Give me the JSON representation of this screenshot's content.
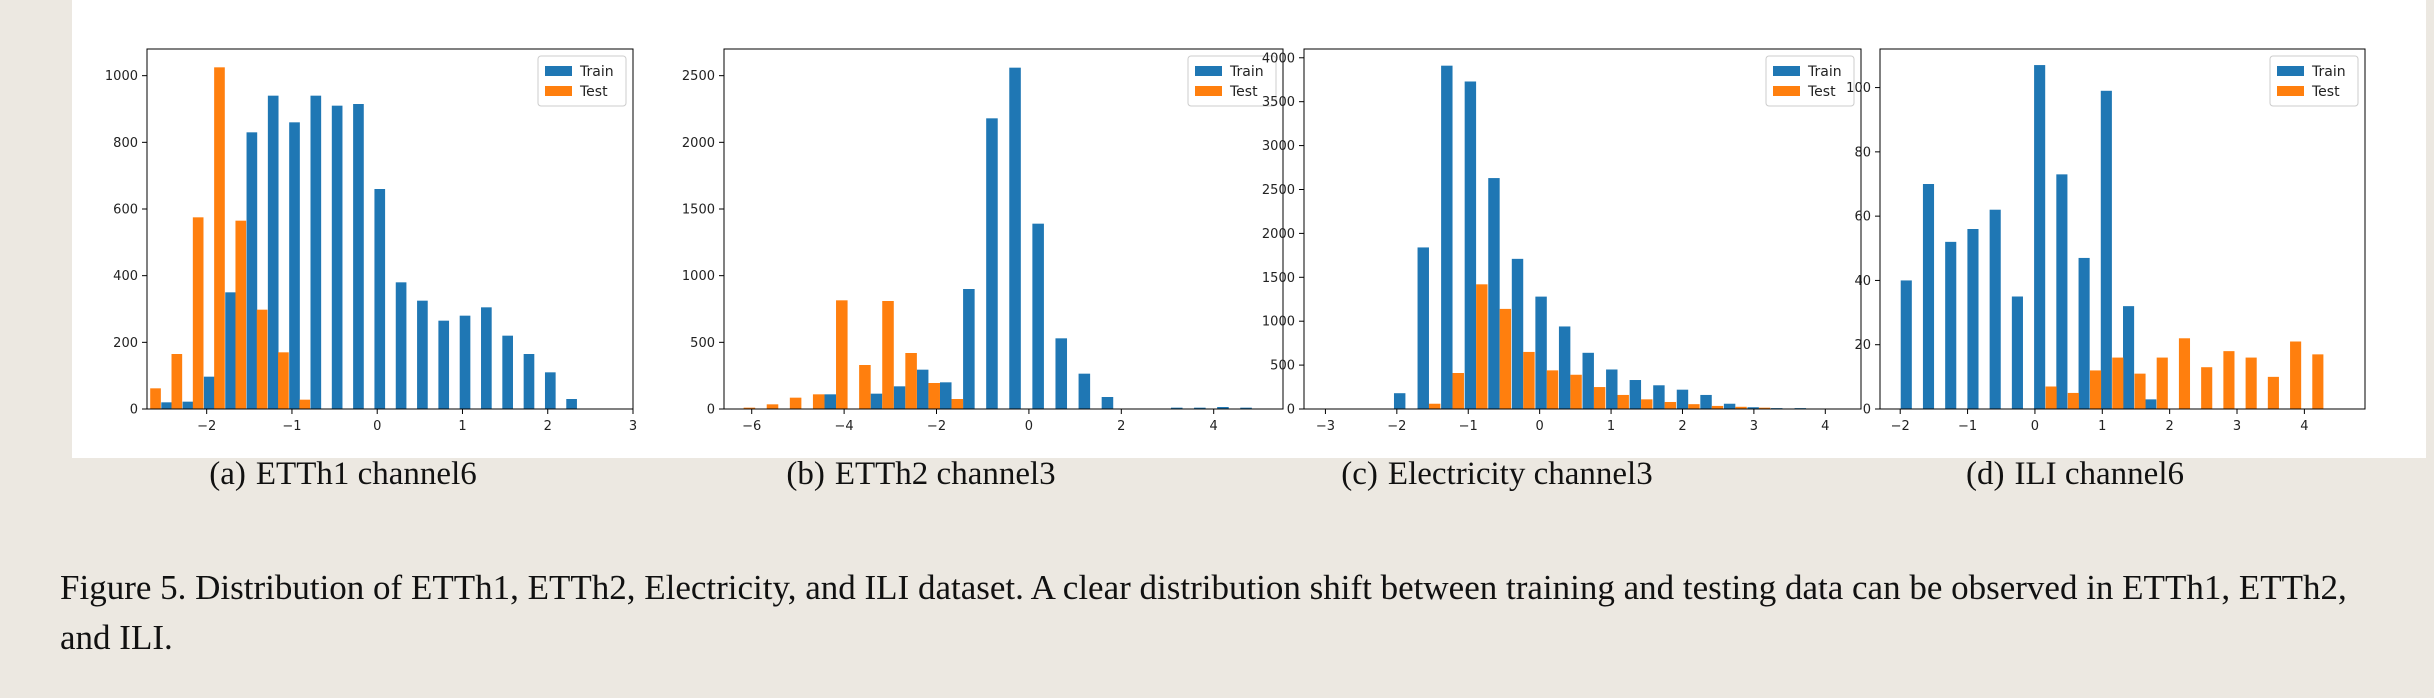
{
  "colors": {
    "train": "#1f77b4",
    "test": "#ff7f0e",
    "background": "#ece8e1",
    "panel": "#ffffff"
  },
  "chart_data": [
    {
      "type": "bar",
      "subcaption_label": "(a)",
      "subcaption_text": "ETTh1 channel6",
      "xlim": [
        -2.7,
        3.0
      ],
      "ylim": [
        0,
        1080
      ],
      "xticks": [
        -2,
        -1,
        0,
        1,
        2,
        3
      ],
      "xtick_labels": [
        "−2",
        "−1",
        "0",
        "1",
        "2",
        "3"
      ],
      "yticks": [
        0,
        200,
        400,
        600,
        800,
        1000
      ],
      "legend_position": "top-right",
      "bar_width": 0.125,
      "series": [
        {
          "name": "Train",
          "x": [
            -2.47,
            -2.22,
            -1.97,
            -1.72,
            -1.47,
            -1.22,
            -0.97,
            -0.72,
            -0.47,
            -0.22,
            0.03,
            0.28,
            0.53,
            0.78,
            1.03,
            1.28,
            1.53,
            1.78,
            2.03,
            2.28,
            2.53
          ],
          "values": [
            20,
            22,
            97,
            350,
            830,
            940,
            860,
            940,
            910,
            915,
            660,
            380,
            325,
            265,
            280,
            305,
            220,
            165,
            110,
            30,
            0
          ]
        },
        {
          "name": "Test",
          "x": [
            -2.6,
            -2.35,
            -2.1,
            -1.85,
            -1.6,
            -1.35,
            -1.1,
            -0.85,
            -0.6
          ],
          "values": [
            62,
            165,
            575,
            1025,
            565,
            298,
            170,
            28,
            0
          ]
        }
      ]
    },
    {
      "type": "bar",
      "subcaption_label": "(b)",
      "subcaption_text": "ETTh2 channel3",
      "xlim": [
        -6.6,
        5.5
      ],
      "ylim": [
        0,
        2700
      ],
      "xticks": [
        -6,
        -4,
        -2,
        0,
        2,
        4
      ],
      "xtick_labels": [
        "−6",
        "−4",
        "−2",
        "0",
        "2",
        "4"
      ],
      "yticks": [
        0,
        500,
        1000,
        1500,
        2000,
        2500
      ],
      "legend_position": "top-right",
      "bar_width": 0.25,
      "series": [
        {
          "name": "Train",
          "x": [
            -5.8,
            -5.3,
            -4.8,
            -4.3,
            -3.8,
            -3.3,
            -2.8,
            -2.3,
            -1.8,
            -1.3,
            -0.8,
            -0.3,
            0.2,
            0.7,
            1.2,
            1.7,
            2.2,
            2.7,
            3.2,
            3.7,
            4.2,
            4.7
          ],
          "values": [
            0,
            0,
            0,
            110,
            0,
            115,
            170,
            295,
            200,
            900,
            2180,
            2560,
            1390,
            530,
            265,
            90,
            0,
            0,
            10,
            10,
            15,
            10
          ]
        },
        {
          "name": "Test",
          "x": [
            -6.05,
            -5.55,
            -5.05,
            -4.55,
            -4.05,
            -3.55,
            -3.05,
            -2.55,
            -2.05,
            -1.55
          ],
          "values": [
            10,
            35,
            85,
            110,
            815,
            330,
            810,
            420,
            195,
            75
          ]
        }
      ]
    },
    {
      "type": "bar",
      "subcaption_label": "(c)",
      "subcaption_text": "Electricity channel3",
      "xlim": [
        -3.3,
        4.5
      ],
      "ylim": [
        0,
        4100
      ],
      "xticks": [
        -3,
        -2,
        -1,
        0,
        1,
        2,
        3,
        4
      ],
      "xtick_labels": [
        "−3",
        "−2",
        "−1",
        "0",
        "1",
        "2",
        "3",
        "4"
      ],
      "yticks": [
        0,
        500,
        1000,
        1500,
        2000,
        2500,
        3000,
        3500,
        4000
      ],
      "legend_position": "top-right",
      "bar_width": 0.16,
      "series": [
        {
          "name": "Train",
          "x": [
            -2.95,
            -2.62,
            -2.29,
            -1.96,
            -1.63,
            -1.3,
            -0.97,
            -0.64,
            -0.31,
            0.02,
            0.35,
            0.68,
            1.01,
            1.34,
            1.67,
            2.0,
            2.33,
            2.66,
            2.99,
            3.32,
            3.65,
            3.98
          ],
          "values": [
            0,
            0,
            0,
            180,
            1840,
            3910,
            3730,
            2630,
            1710,
            1280,
            940,
            640,
            450,
            330,
            270,
            220,
            160,
            60,
            20,
            10,
            10,
            5
          ]
        },
        {
          "name": "Test",
          "x": [
            -1.47,
            -1.14,
            -0.81,
            -0.48,
            -0.15,
            0.18,
            0.51,
            0.84,
            1.17,
            1.5,
            1.83,
            2.16,
            2.49,
            2.82,
            3.15,
            3.48
          ],
          "values": [
            60,
            410,
            1420,
            1140,
            650,
            440,
            390,
            250,
            160,
            110,
            80,
            55,
            35,
            25,
            15,
            5
          ]
        }
      ]
    },
    {
      "type": "bar",
      "subcaption_label": "(d)",
      "subcaption_text": "ILI channel6",
      "xlim": [
        -2.3,
        4.9
      ],
      "ylim": [
        0,
        112
      ],
      "xticks": [
        -2,
        -1,
        0,
        1,
        2,
        3,
        4
      ],
      "xtick_labels": [
        "−2",
        "−1",
        "0",
        "1",
        "2",
        "3",
        "4"
      ],
      "yticks": [
        0,
        20,
        40,
        60,
        80,
        100
      ],
      "legend_position": "top-right",
      "bar_width": 0.165,
      "series": [
        {
          "name": "Train",
          "x": [
            -1.91,
            -1.58,
            -1.25,
            -0.92,
            -0.59,
            -0.26,
            0.07,
            0.4,
            0.73,
            1.06,
            1.39,
            1.72
          ],
          "values": [
            40,
            70,
            52,
            56,
            62,
            35,
            107,
            73,
            47,
            99,
            32,
            3
          ]
        },
        {
          "name": "Test",
          "x": [
            0.24,
            0.57,
            0.9,
            1.23,
            1.56,
            1.89,
            2.22,
            2.55,
            2.88,
            3.21,
            3.54,
            3.87,
            4.2,
            4.53
          ],
          "values": [
            7,
            5,
            12,
            16,
            11,
            16,
            22,
            13,
            18,
            16,
            10,
            21,
            17,
            0
          ]
        }
      ]
    }
  ],
  "caption": "Figure 5.  Distribution of ETTh1, ETTh2, Electricity, and ILI dataset.  A clear distribution shift between training and testing data can be observed in ETTh1, ETTh2, and ILI."
}
